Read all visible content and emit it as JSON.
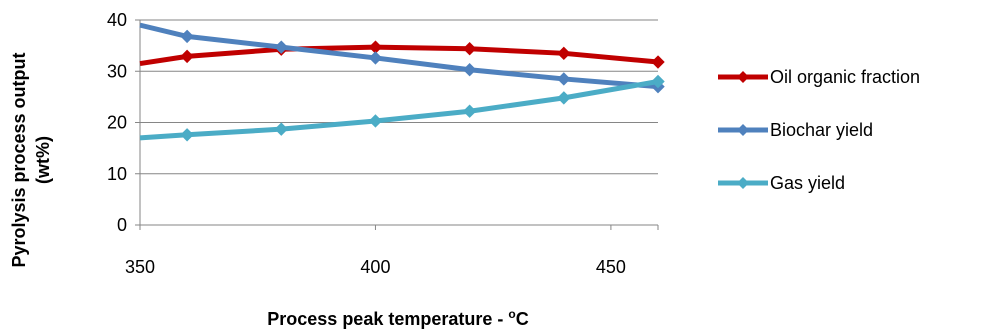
{
  "chart_data": {
    "type": "line",
    "x": [
      350,
      360,
      380,
      400,
      420,
      440,
      460
    ],
    "xlim": [
      350,
      460
    ],
    "ylim": [
      0,
      40
    ],
    "xticks": [
      350,
      400,
      450
    ],
    "yticks": [
      0,
      10,
      20,
      30,
      40
    ],
    "xlabel": "Process peak temperature - ",
    "xlabel_unit_sup": "o",
    "xlabel_unit": "C",
    "ylabel_line1": "Pyrolysis process output",
    "ylabel_line2": "(wt%)",
    "grid": "horizontal",
    "legend_position": "right",
    "series": [
      {
        "name": "Oil organic fraction",
        "color": "#c00000",
        "values": [
          31.5,
          32.9,
          34.3,
          34.7,
          34.4,
          33.5,
          31.8
        ]
      },
      {
        "name": "Biochar yield",
        "color": "#4f81bd",
        "values": [
          39.0,
          36.8,
          34.7,
          32.6,
          30.3,
          28.5,
          27.0
        ]
      },
      {
        "name": "Gas yield",
        "color": "#4bacc6",
        "values": [
          17.0,
          17.6,
          18.7,
          20.3,
          22.2,
          24.8,
          28.0
        ]
      }
    ]
  }
}
